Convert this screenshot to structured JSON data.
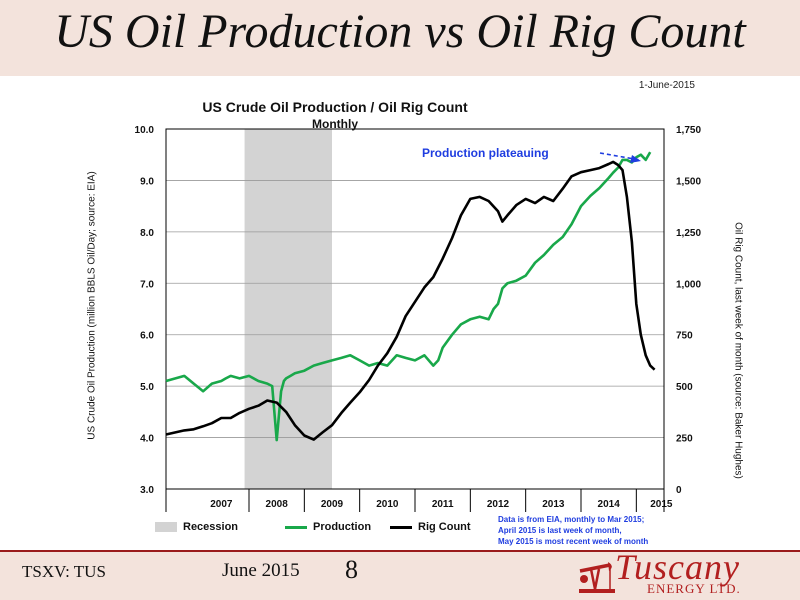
{
  "slide": {
    "title": "US Oil Production vs Oil Rig Count",
    "date_note": "1-June-2015",
    "ticker": "TSXV: TUS",
    "footer_date": "June 2015",
    "page_number": "8"
  },
  "logo": {
    "name": "Tuscany",
    "sub": "ENERGY LTD.",
    "icon": "pumpjack-icon"
  },
  "colors": {
    "production": "#19a84a",
    "rig_count": "#000000",
    "recession": "#d3d3d3",
    "annotation": "#1f3de0",
    "accent": "#9a1b1b"
  },
  "chart_data": {
    "type": "line",
    "title": "US Crude Oil Production / Oil Rig Count",
    "subtitle": "Monthly",
    "annotation": "Production plateauing",
    "ylabel_left": "US Crude Oil Production (million BBLS Oil/Day; source: EIA)",
    "ylabel_right": "Oil Rig Count, last week of month (source: Baker Hughes)",
    "x_tick_labels": [
      "2007",
      "2008",
      "2009",
      "2010",
      "2011",
      "2012",
      "2013",
      "2014",
      "2015"
    ],
    "y_left_ticks": [
      "3.0",
      "4.0",
      "5.0",
      "6.0",
      "7.0",
      "8.0",
      "9.0",
      "10.0"
    ],
    "y_right_ticks": [
      "0",
      "250",
      "500",
      "750",
      "1,000",
      "1,250",
      "1,500",
      "1,750"
    ],
    "ylim_left": [
      3.0,
      10.0
    ],
    "ylim_right": [
      0,
      1750
    ],
    "xlim": [
      2006.5,
      2015.5
    ],
    "grid": true,
    "legend_position": "bottom",
    "recession": {
      "label": "Recession",
      "start": 2007.92,
      "end": 2009.5
    },
    "series": [
      {
        "name": "Production",
        "axis": "left",
        "x": [
          2006.5,
          2006.67,
          2006.83,
          2007.0,
          2007.17,
          2007.33,
          2007.5,
          2007.58,
          2007.67,
          2007.83,
          2008.0,
          2008.17,
          2008.33,
          2008.42,
          2008.5,
          2008.58,
          2008.63,
          2008.67,
          2008.75,
          2008.83,
          2009.0,
          2009.17,
          2009.33,
          2009.5,
          2009.67,
          2009.83,
          2010.0,
          2010.17,
          2010.33,
          2010.5,
          2010.67,
          2010.83,
          2011.0,
          2011.17,
          2011.33,
          2011.42,
          2011.5,
          2011.67,
          2011.83,
          2012.0,
          2012.17,
          2012.33,
          2012.42,
          2012.5,
          2012.58,
          2012.67,
          2012.83,
          2013.0,
          2013.17,
          2013.33,
          2013.5,
          2013.67,
          2013.83,
          2014.0,
          2014.17,
          2014.33,
          2014.5,
          2014.58,
          2014.67,
          2014.75,
          2014.83,
          2014.92,
          2015.0,
          2015.08,
          2015.17,
          2015.25
        ],
        "values": [
          5.1,
          5.15,
          5.2,
          5.05,
          4.9,
          5.05,
          5.1,
          5.15,
          5.2,
          5.15,
          5.2,
          5.1,
          5.05,
          5.0,
          3.95,
          4.9,
          5.1,
          5.15,
          5.2,
          5.25,
          5.3,
          5.4,
          5.45,
          5.5,
          5.55,
          5.6,
          5.5,
          5.4,
          5.45,
          5.4,
          5.6,
          5.55,
          5.5,
          5.6,
          5.4,
          5.5,
          5.75,
          6.0,
          6.2,
          6.3,
          6.35,
          6.3,
          6.5,
          6.6,
          6.9,
          7.0,
          7.05,
          7.15,
          7.4,
          7.55,
          7.75,
          7.9,
          8.15,
          8.5,
          8.7,
          8.85,
          9.05,
          9.15,
          9.25,
          9.4,
          9.4,
          9.35,
          9.45,
          9.5,
          9.4,
          9.55
        ]
      },
      {
        "name": "Rig Count",
        "axis": "right",
        "x": [
          2006.5,
          2006.67,
          2006.83,
          2007.0,
          2007.17,
          2007.33,
          2007.5,
          2007.67,
          2007.83,
          2008.0,
          2008.17,
          2008.33,
          2008.5,
          2008.67,
          2008.83,
          2009.0,
          2009.17,
          2009.33,
          2009.5,
          2009.67,
          2009.83,
          2010.0,
          2010.17,
          2010.33,
          2010.5,
          2010.67,
          2010.83,
          2011.0,
          2011.17,
          2011.33,
          2011.5,
          2011.67,
          2011.83,
          2012.0,
          2012.17,
          2012.33,
          2012.5,
          2012.58,
          2012.67,
          2012.83,
          2013.0,
          2013.17,
          2013.33,
          2013.5,
          2013.67,
          2013.83,
          2014.0,
          2014.17,
          2014.33,
          2014.5,
          2014.58,
          2014.67,
          2014.75,
          2014.83,
          2014.92,
          2015.0,
          2015.08,
          2015.17,
          2015.25,
          2015.33
        ],
        "values": [
          265,
          275,
          285,
          290,
          305,
          320,
          345,
          345,
          370,
          390,
          405,
          430,
          420,
          375,
          310,
          260,
          240,
          275,
          310,
          370,
          420,
          470,
          530,
          600,
          660,
          740,
          840,
          910,
          980,
          1030,
          1120,
          1220,
          1330,
          1410,
          1420,
          1400,
          1350,
          1300,
          1330,
          1380,
          1410,
          1390,
          1420,
          1400,
          1460,
          1520,
          1540,
          1550,
          1560,
          1580,
          1590,
          1575,
          1550,
          1420,
          1200,
          900,
          750,
          650,
          600,
          580
        ]
      }
    ],
    "legend": {
      "recession": "Recession",
      "production": "Production",
      "rig_count": "Rig Count"
    },
    "data_note": [
      "Data is from EIA, monthly to Mar 2015;",
      "April 2015 is last week of month,",
      "May 2015 is most recent week of month"
    ]
  }
}
